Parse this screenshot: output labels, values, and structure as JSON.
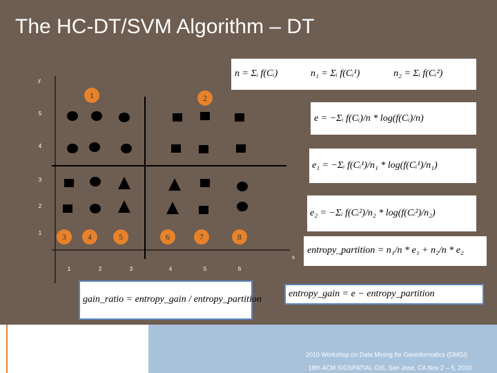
{
  "header": {
    "title": "The HC-DT/SVM Algorithm – DT"
  },
  "plot": {
    "y_label": "y",
    "x_label": "x",
    "y_ticks": [
      "5",
      "4",
      "3",
      "2",
      "1"
    ],
    "x_ticks": [
      "1",
      "2",
      "3",
      "4",
      "5",
      "6"
    ],
    "markers": [
      "1",
      "2",
      "3",
      "4",
      "5",
      "6",
      "7",
      "8"
    ]
  },
  "formulas": {
    "n": "n = Σᵢ f(Cᵢ)",
    "n1": "n₁ = Σᵢ f(Cᵢ¹)",
    "n2": "n₂ = Σᵢ f(Cᵢ²)",
    "e": "e = −Σᵢ f(Cᵢ)/n * log(f(Cᵢ)/n)",
    "e1": "e₁ = −Σᵢ f(Cᵢ¹)/n₁ * log(f(Cᵢ¹)/n₁)",
    "e2": "e₂ = −Σᵢ f(Cᵢ²)/n₂ * log(f(Cᵢ²)/n₂)",
    "entropy_partition": "entropy_partition = n₁/n * e₁ + n₂/n * e₂",
    "gain_ratio": "gain_ratio = entropy_gain / entropy_partition",
    "entropy_gain": "entropy_gain = e − entropy_partition"
  },
  "footer": {
    "line1": "2010 Workshop on Data Mining for Geoinformatics (DMGI)",
    "line2": "18th ACM SIGSPATIAL GIS, San Jose, CA Nov 2 – 5, 2010"
  }
}
